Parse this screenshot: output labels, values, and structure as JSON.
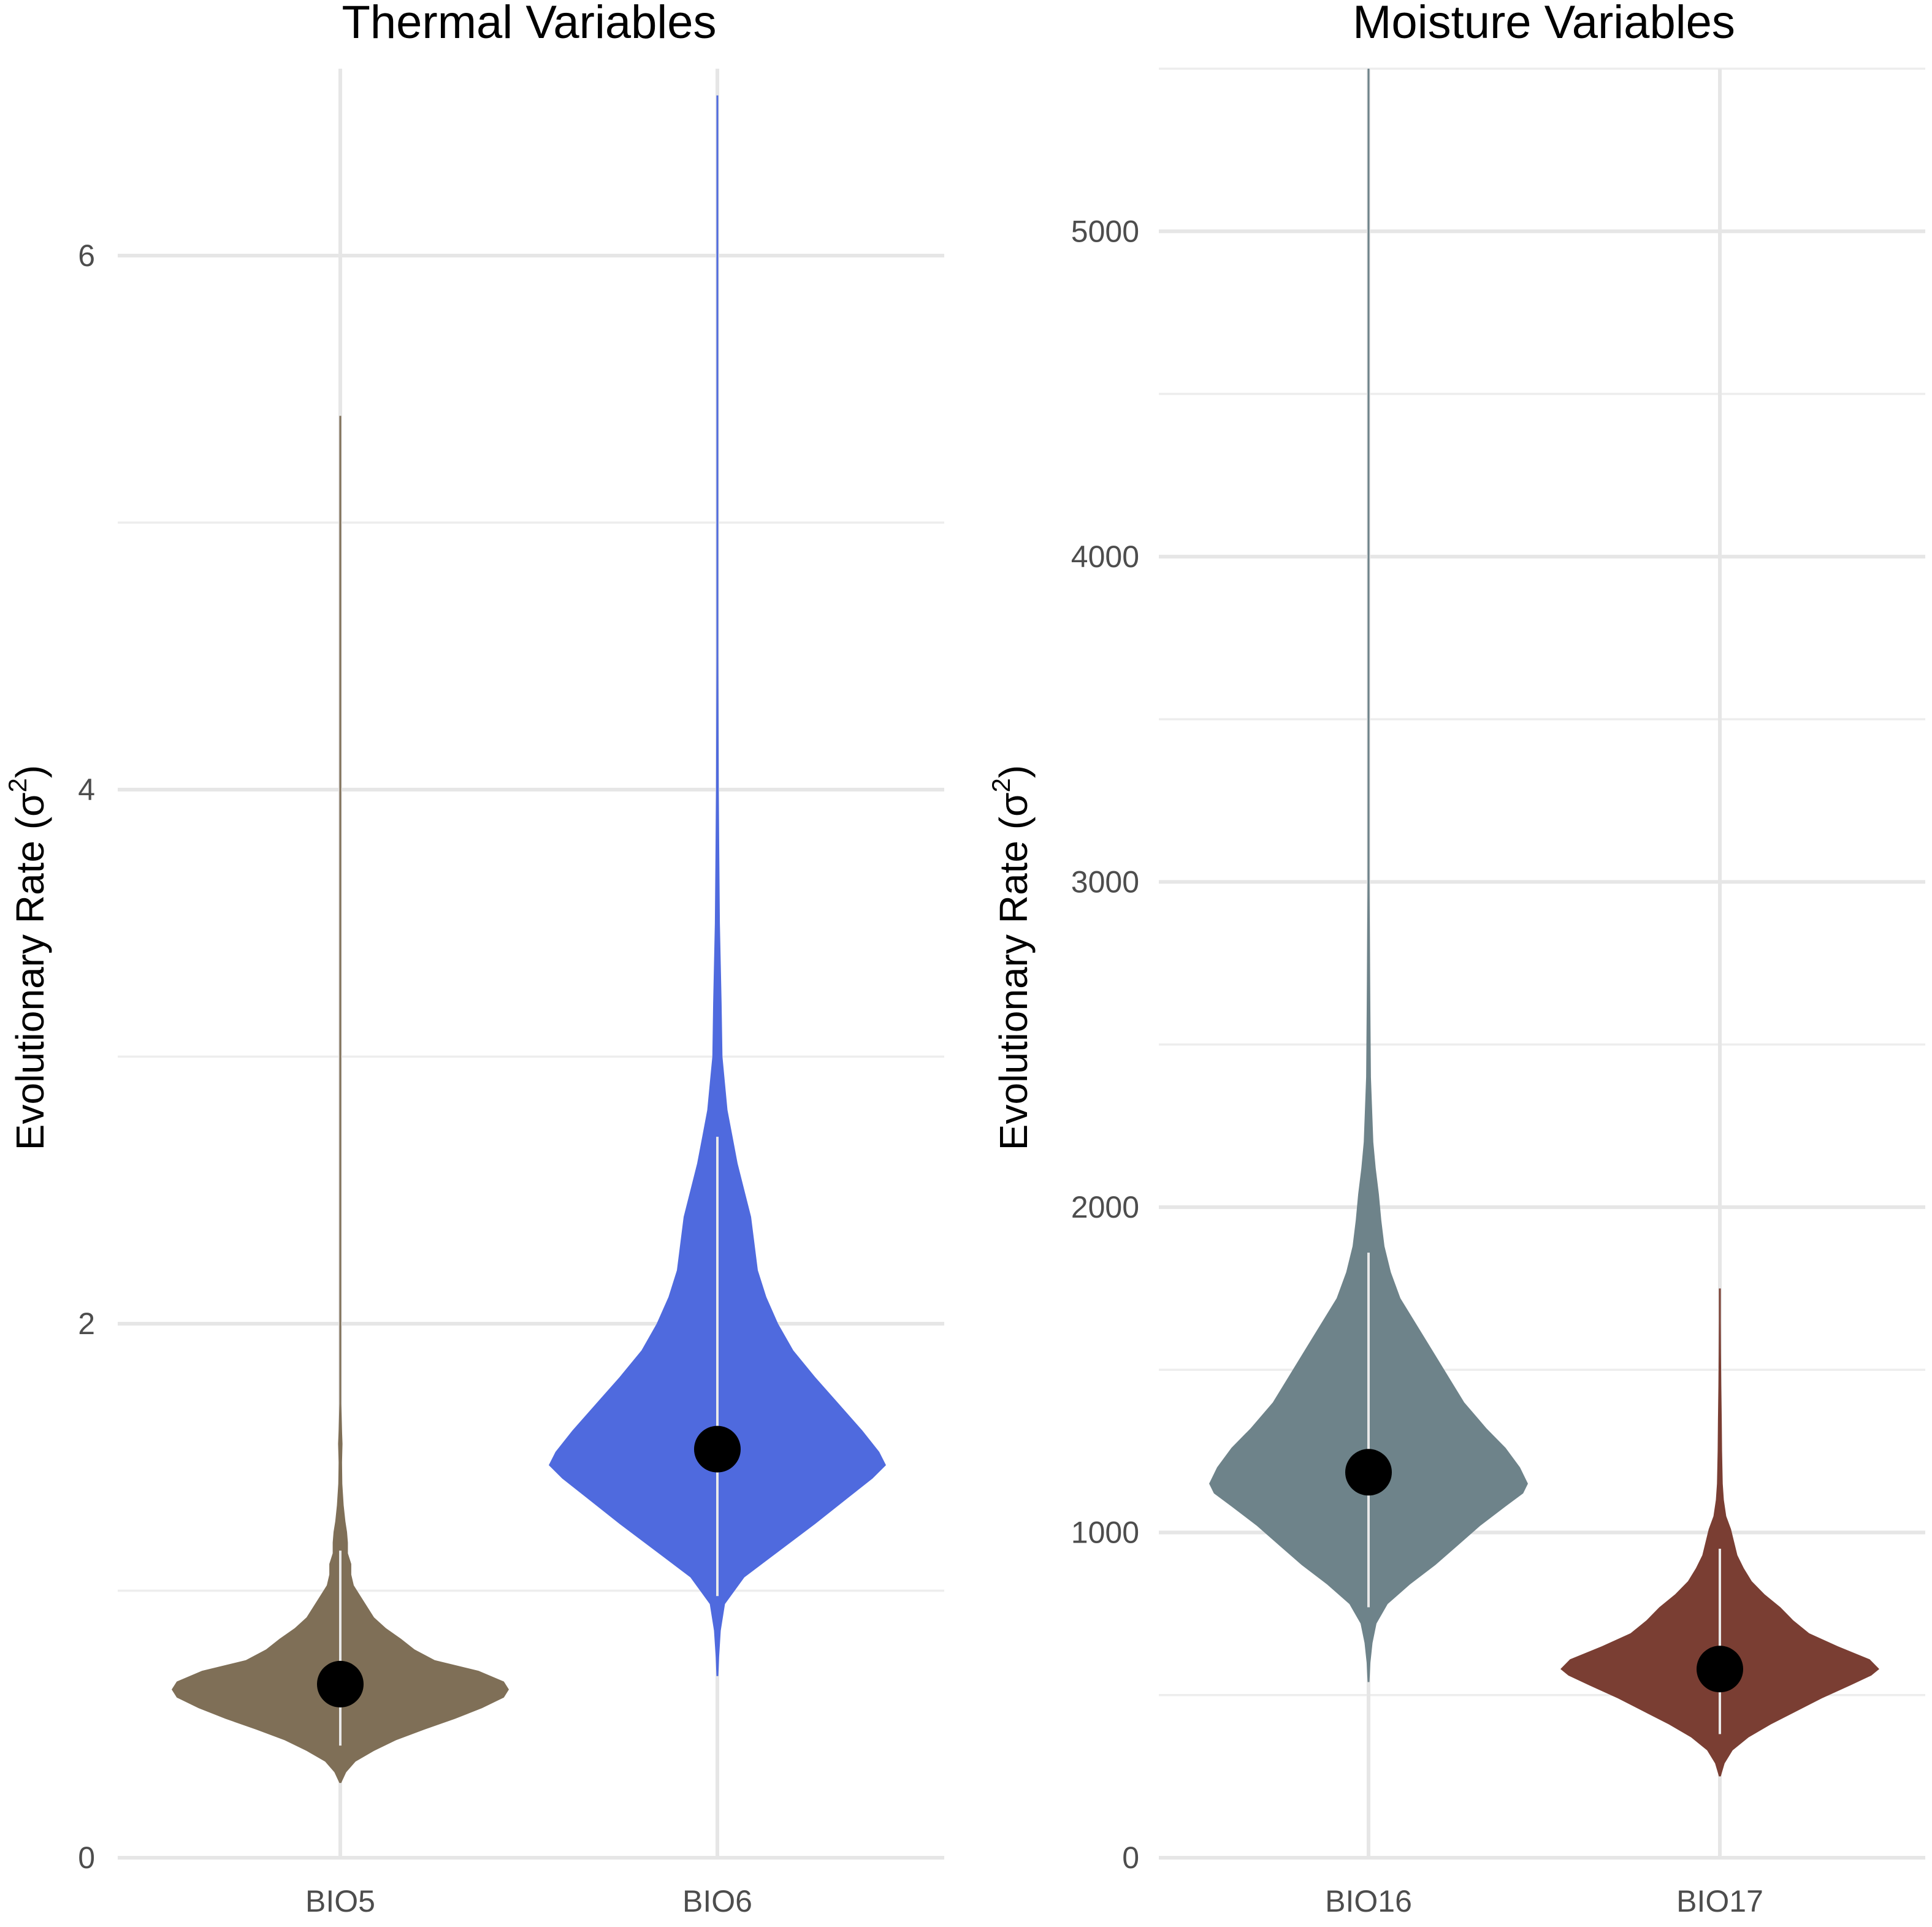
{
  "chart_data": [
    {
      "type": "violin",
      "title": "Thermal Variables",
      "ylabel": "Evolutionary Rate (σ²)",
      "ylabel_parts": {
        "main": "Evolutionary Rate (",
        "symbol": "σ",
        "superscript": "2",
        "close": ")"
      },
      "ylim": [
        0,
        6.7
      ],
      "yticks": [
        0,
        2,
        4,
        6
      ],
      "ytick_labels": [
        "0",
        "2",
        "4",
        "6"
      ],
      "grid": true,
      "categories": [
        "BIO5",
        "BIO6"
      ],
      "series": [
        {
          "category": "BIO5",
          "color": "#7f6f57",
          "point_estimate": 0.65,
          "interval": [
            0.42,
            1.15
          ],
          "range": [
            0.28,
            5.4
          ],
          "density": [
            [
              0.28,
              0.0
            ],
            [
              0.32,
              0.035
            ],
            [
              0.36,
              0.09
            ],
            [
              0.4,
              0.2
            ],
            [
              0.44,
              0.33
            ],
            [
              0.48,
              0.5
            ],
            [
              0.52,
              0.68
            ],
            [
              0.56,
              0.84
            ],
            [
              0.6,
              0.97
            ],
            [
              0.63,
              1.0
            ],
            [
              0.66,
              0.97
            ],
            [
              0.7,
              0.82
            ],
            [
              0.74,
              0.56
            ],
            [
              0.78,
              0.44
            ],
            [
              0.82,
              0.36
            ],
            [
              0.86,
              0.27
            ],
            [
              0.9,
              0.2
            ],
            [
              0.94,
              0.16
            ],
            [
              0.98,
              0.12
            ],
            [
              1.02,
              0.08
            ],
            [
              1.06,
              0.065
            ],
            [
              1.1,
              0.065
            ],
            [
              1.14,
              0.045
            ],
            [
              1.18,
              0.045
            ],
            [
              1.22,
              0.04
            ],
            [
              1.26,
              0.03
            ],
            [
              1.32,
              0.02
            ],
            [
              1.4,
              0.012
            ],
            [
              1.48,
              0.01
            ],
            [
              1.55,
              0.013
            ],
            [
              1.6,
              0.01
            ],
            [
              1.7,
              0.004
            ],
            [
              2.0,
              0.003
            ],
            [
              2.5,
              0.002
            ],
            [
              3.2,
              0.002
            ],
            [
              4.0,
              0.001
            ],
            [
              4.8,
              0.001
            ],
            [
              5.4,
              0.0
            ]
          ]
        },
        {
          "category": "BIO6",
          "color": "#4f6ade",
          "point_estimate": 1.53,
          "interval": [
            0.98,
            2.7
          ],
          "range": [
            0.68,
            6.6
          ],
          "density": [
            [
              0.68,
              0.0
            ],
            [
              0.75,
              0.01
            ],
            [
              0.85,
              0.02
            ],
            [
              0.95,
              0.045
            ],
            [
              1.05,
              0.16
            ],
            [
              1.15,
              0.37
            ],
            [
              1.25,
              0.58
            ],
            [
              1.35,
              0.78
            ],
            [
              1.42,
              0.92
            ],
            [
              1.47,
              1.0
            ],
            [
              1.52,
              0.96
            ],
            [
              1.6,
              0.86
            ],
            [
              1.7,
              0.72
            ],
            [
              1.8,
              0.58
            ],
            [
              1.9,
              0.45
            ],
            [
              2.0,
              0.36
            ],
            [
              2.1,
              0.29
            ],
            [
              2.2,
              0.24
            ],
            [
              2.3,
              0.22
            ],
            [
              2.4,
              0.2
            ],
            [
              2.5,
              0.16
            ],
            [
              2.6,
              0.12
            ],
            [
              2.7,
              0.09
            ],
            [
              2.8,
              0.06
            ],
            [
              2.9,
              0.045
            ],
            [
              3.0,
              0.03
            ],
            [
              3.2,
              0.025
            ],
            [
              3.5,
              0.015
            ],
            [
              4.0,
              0.008
            ],
            [
              4.5,
              0.004
            ],
            [
              5.0,
              0.002
            ],
            [
              6.0,
              0.001
            ],
            [
              6.6,
              0.0
            ]
          ]
        }
      ]
    },
    {
      "type": "violin",
      "title": "Moisture Variables",
      "ylabel": "Evolutionary Rate (σ²)",
      "ylabel_parts": {
        "main": "Evolutionary Rate (",
        "symbol": "σ",
        "superscript": "2",
        "close": ")"
      },
      "ylim": [
        0,
        5500
      ],
      "yticks": [
        0,
        1000,
        2000,
        3000,
        4000,
        5000
      ],
      "ytick_labels": [
        "0",
        "1000",
        "2000",
        "3000",
        "4000",
        "5000"
      ],
      "grid": true,
      "categories": [
        "BIO16",
        "BIO17"
      ],
      "series": [
        {
          "category": "BIO16",
          "color": "#6e838a",
          "point_estimate": 1185,
          "interval": [
            770,
            1860
          ],
          "range": [
            540,
            5500
          ],
          "density": [
            [
              540,
              0.0
            ],
            [
              600,
              0.012
            ],
            [
              660,
              0.025
            ],
            [
              720,
              0.05
            ],
            [
              780,
              0.12
            ],
            [
              840,
              0.26
            ],
            [
              900,
              0.42
            ],
            [
              960,
              0.56
            ],
            [
              1020,
              0.7
            ],
            [
              1080,
              0.86
            ],
            [
              1120,
              0.97
            ],
            [
              1150,
              1.0
            ],
            [
              1200,
              0.95
            ],
            [
              1260,
              0.86
            ],
            [
              1320,
              0.74
            ],
            [
              1400,
              0.6
            ],
            [
              1480,
              0.5
            ],
            [
              1560,
              0.4
            ],
            [
              1640,
              0.3
            ],
            [
              1720,
              0.2
            ],
            [
              1800,
              0.14
            ],
            [
              1880,
              0.1
            ],
            [
              1960,
              0.08
            ],
            [
              2040,
              0.065
            ],
            [
              2120,
              0.045
            ],
            [
              2200,
              0.03
            ],
            [
              2400,
              0.015
            ],
            [
              2700,
              0.01
            ],
            [
              3000,
              0.006
            ],
            [
              3500,
              0.004
            ],
            [
              4000,
              0.002
            ],
            [
              4700,
              0.001
            ],
            [
              5500,
              0.0
            ]
          ]
        },
        {
          "category": "BIO17",
          "color": "#7a3e33",
          "point_estimate": 580,
          "interval": [
            380,
            950
          ],
          "range": [
            250,
            1750
          ],
          "density": [
            [
              250,
              0.0
            ],
            [
              290,
              0.03
            ],
            [
              330,
              0.08
            ],
            [
              370,
              0.18
            ],
            [
              410,
              0.32
            ],
            [
              450,
              0.48
            ],
            [
              490,
              0.64
            ],
            [
              530,
              0.82
            ],
            [
              560,
              0.95
            ],
            [
              580,
              1.0
            ],
            [
              610,
              0.94
            ],
            [
              650,
              0.74
            ],
            [
              690,
              0.56
            ],
            [
              730,
              0.46
            ],
            [
              770,
              0.38
            ],
            [
              810,
              0.28
            ],
            [
              850,
              0.2
            ],
            [
              890,
              0.15
            ],
            [
              930,
              0.11
            ],
            [
              970,
              0.09
            ],
            [
              1010,
              0.07
            ],
            [
              1050,
              0.04
            ],
            [
              1100,
              0.025
            ],
            [
              1150,
              0.018
            ],
            [
              1250,
              0.014
            ],
            [
              1350,
              0.012
            ],
            [
              1450,
              0.009
            ],
            [
              1550,
              0.007
            ],
            [
              1650,
              0.004
            ],
            [
              1750,
              0.0
            ]
          ]
        }
      ]
    }
  ]
}
